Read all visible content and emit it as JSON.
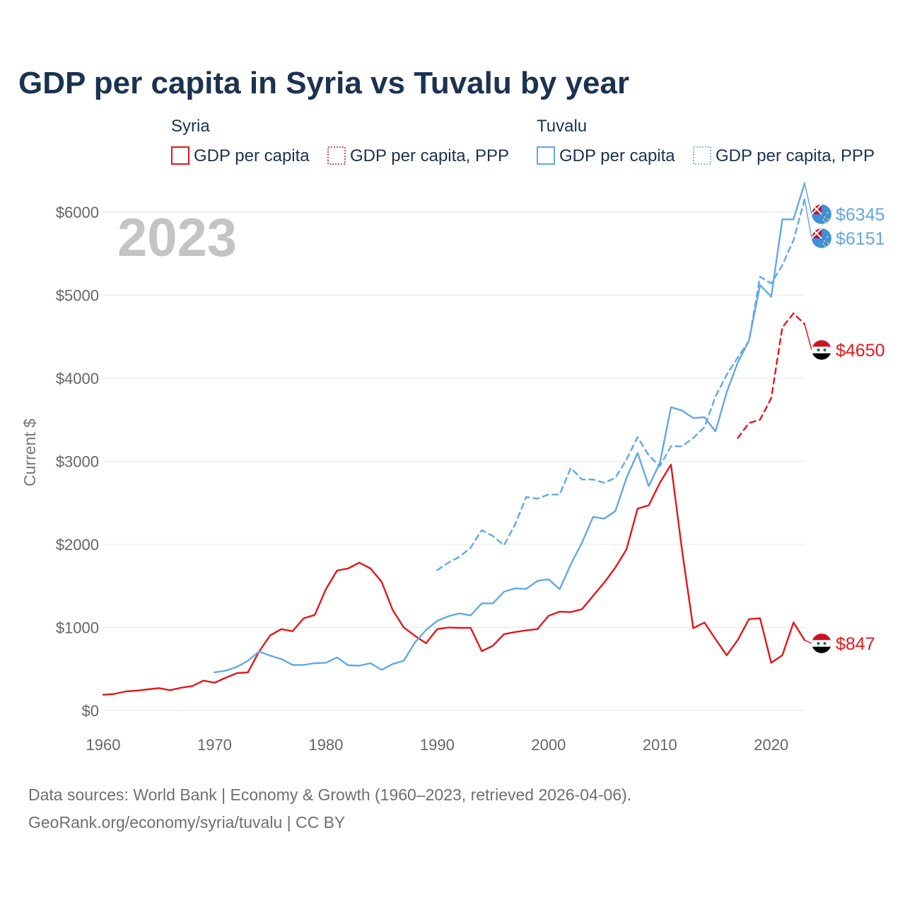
{
  "chart_data": {
    "type": "line",
    "title": "GDP per capita in Syria vs Tuvalu by year",
    "year_watermark": "2023",
    "ylabel": "Current $",
    "xlim": [
      1960,
      2023
    ],
    "ylim": [
      0,
      6500
    ],
    "x_ticks": [
      1960,
      1970,
      1980,
      1990,
      2000,
      2010,
      2020
    ],
    "x_tick_labels": [
      "1960",
      "1970",
      "1980",
      "1990",
      "2000",
      "2010",
      "2020"
    ],
    "y_ticks": [
      0,
      1000,
      2000,
      3000,
      4000,
      5000,
      6000
    ],
    "y_tick_labels": [
      "$0",
      "$1000",
      "$2000",
      "$3000",
      "$4000",
      "$5000",
      "$6000"
    ],
    "legend": {
      "groups": [
        {
          "name": "Syria",
          "items": [
            {
              "label": "GDP per capita",
              "style": "solid",
              "color": "#e3171b"
            },
            {
              "label": "GDP per capita, PPP",
              "style": "dotted",
              "color": "#e3171b"
            }
          ]
        },
        {
          "name": "Tuvalu",
          "items": [
            {
              "label": "GDP per capita",
              "style": "solid",
              "color": "#62a8e5"
            },
            {
              "label": "GDP per capita, PPP",
              "style": "dotted",
              "color": "#62a8e5"
            }
          ]
        }
      ]
    },
    "series": [
      {
        "name": "Syria GDP per capita",
        "color": "#e3171b",
        "dash": false,
        "end_label": "$847",
        "x": [
          1960,
          1961,
          1962,
          1963,
          1964,
          1965,
          1966,
          1967,
          1968,
          1969,
          1970,
          1971,
          1972,
          1973,
          1974,
          1975,
          1976,
          1977,
          1978,
          1979,
          1980,
          1981,
          1982,
          1983,
          1984,
          1985,
          1986,
          1987,
          1988,
          1989,
          1990,
          1991,
          1992,
          1993,
          1994,
          1995,
          1996,
          1997,
          1998,
          1999,
          2000,
          2001,
          2002,
          2003,
          2004,
          2005,
          2006,
          2007,
          2008,
          2009,
          2010,
          2011,
          2012,
          2013,
          2014,
          2015,
          2016,
          2017,
          2018,
          2019,
          2020,
          2021,
          2022,
          2023
        ],
        "values": [
          190,
          200,
          230,
          240,
          255,
          270,
          245,
          275,
          295,
          360,
          335,
          395,
          450,
          460,
          710,
          905,
          980,
          955,
          1110,
          1150,
          1460,
          1685,
          1710,
          1780,
          1710,
          1550,
          1210,
          1000,
          900,
          810,
          980,
          1000,
          995,
          995,
          715,
          780,
          920,
          945,
          965,
          980,
          1140,
          1190,
          1185,
          1220,
          1380,
          1540,
          1720,
          1940,
          2430,
          2470,
          2740,
          2960,
          1920,
          990,
          1060,
          860,
          665,
          850,
          1100,
          1110,
          575,
          665,
          1060,
          847
        ]
      },
      {
        "name": "Syria GDP per capita, PPP",
        "color": "#e3171b",
        "dash": true,
        "end_label": "$4650",
        "x": [
          2017,
          2018,
          2019,
          2020,
          2021,
          2022,
          2023
        ],
        "values": [
          3280,
          3460,
          3500,
          3760,
          4610,
          4780,
          4650
        ]
      },
      {
        "name": "Tuvalu GDP per capita",
        "color": "#62a8e5",
        "dash": false,
        "end_label": "$6345",
        "x": [
          1970,
          1971,
          1972,
          1973,
          1974,
          1975,
          1976,
          1977,
          1978,
          1979,
          1980,
          1981,
          1982,
          1983,
          1984,
          1985,
          1986,
          1987,
          1988,
          1989,
          1990,
          1991,
          1992,
          1993,
          1994,
          1995,
          1996,
          1997,
          1998,
          1999,
          2000,
          2001,
          2002,
          2003,
          2004,
          2005,
          2006,
          2007,
          2008,
          2009,
          2010,
          2011,
          2012,
          2013,
          2014,
          2015,
          2016,
          2017,
          2018,
          2019,
          2020,
          2021,
          2022,
          2023
        ],
        "values": [
          460,
          480,
          525,
          600,
          710,
          660,
          620,
          550,
          550,
          570,
          575,
          640,
          545,
          540,
          570,
          490,
          560,
          600,
          820,
          970,
          1080,
          1135,
          1170,
          1145,
          1290,
          1290,
          1430,
          1470,
          1465,
          1560,
          1580,
          1460,
          1760,
          2020,
          2330,
          2310,
          2400,
          2800,
          3100,
          2700,
          2980,
          3650,
          3610,
          3520,
          3530,
          3360,
          3830,
          4190,
          4450,
          5120,
          4980,
          5910,
          5910,
          6345
        ]
      },
      {
        "name": "Tuvalu GDP per capita, PPP",
        "color": "#62a8e5",
        "dash": true,
        "end_label": "$6151",
        "x": [
          1990,
          1991,
          1992,
          1993,
          1994,
          1995,
          1996,
          1997,
          1998,
          1999,
          2000,
          2001,
          2002,
          2003,
          2004,
          2005,
          2006,
          2007,
          2008,
          2009,
          2010,
          2011,
          2012,
          2013,
          2014,
          2015,
          2016,
          2017,
          2018,
          2019,
          2020,
          2021,
          2022,
          2023
        ],
        "values": [
          1690,
          1780,
          1850,
          1960,
          2170,
          2100,
          1990,
          2240,
          2570,
          2550,
          2600,
          2600,
          2920,
          2780,
          2780,
          2740,
          2800,
          3020,
          3290,
          3070,
          2940,
          3180,
          3180,
          3280,
          3410,
          3780,
          4040,
          4250,
          4450,
          5220,
          5140,
          5360,
          5660,
          6151
        ]
      }
    ]
  },
  "footer": {
    "source": "Data sources: World Bank | Economy & Growth (1960–2023, retrieved 2026-04-06).",
    "site": "GeoRank.org/economy/syria/tuvalu | CC BY"
  },
  "colors": {
    "syria": "#e3171b",
    "tuvalu": "#62a8e5",
    "title": "#1b3250"
  },
  "icons": {
    "syria_flag": "syria-flag-icon",
    "tuvalu_flag": "tuvalu-flag-icon"
  }
}
